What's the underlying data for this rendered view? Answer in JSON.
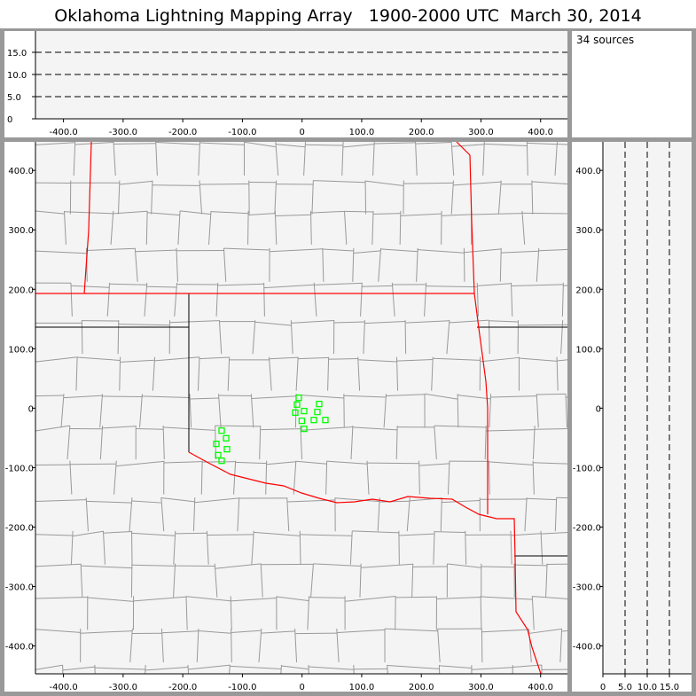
{
  "title": "Oklahoma Lightning Mapping Array   1900-2000 UTC  March 30, 2014",
  "source_count": "34 sources",
  "colors": {
    "border": "#999999",
    "plot_bg": "#f4f4f4",
    "state_line": "#ff0000",
    "county_line": "#999999",
    "source_marker": "#00ff00"
  },
  "chart_data": [
    {
      "type": "line",
      "panel": "altitude-vs-east-west",
      "xlim": [
        -447,
        445
      ],
      "ylim": [
        0,
        19.8
      ],
      "x_ticks": [
        "-400.0",
        "-300.0",
        "-200.0",
        "-100.0",
        "0",
        "100.0",
        "200.0",
        "300.0",
        "400.0"
      ],
      "x_tick_values": [
        -400,
        -300,
        -200,
        -100,
        0,
        100,
        200,
        300,
        400
      ],
      "y_ticks": [
        "0",
        "5.0",
        "10.0",
        "15.0"
      ],
      "y_tick_values": [
        0,
        5,
        10,
        15
      ],
      "reference_lines": [
        5,
        10,
        15
      ],
      "reference_line_style": "dashed"
    },
    {
      "type": "scatter",
      "panel": "plan-view-map",
      "xlim": [
        -447,
        445
      ],
      "ylim": [
        -447,
        448
      ],
      "x_ticks": [
        "-400.0",
        "-300.0",
        "-200.0",
        "-100.0",
        "0",
        "100.0",
        "200.0",
        "300.0",
        "400.0"
      ],
      "x_tick_values": [
        -400,
        -300,
        -200,
        -100,
        0,
        100,
        200,
        300,
        400
      ],
      "y_ticks": [
        "400.0",
        "300.0",
        "200.0",
        "100.0",
        "0",
        "-100.0",
        "-200.0",
        "-300.0",
        "-400.0"
      ],
      "y_tick_values": [
        400,
        300,
        200,
        100,
        0,
        -100,
        -200,
        -300,
        -400
      ],
      "marker": "hollow-square",
      "points": [
        [
          -5.5,
          17.5
        ],
        [
          -8.5,
          6
        ],
        [
          28.7,
          7
        ],
        [
          -11.4,
          -7.5
        ],
        [
          3.4,
          -4.9
        ],
        [
          25.7,
          -6.4
        ],
        [
          -0.4,
          -21.3
        ],
        [
          19.8,
          -19.9
        ],
        [
          39.1,
          -19.9
        ],
        [
          3.4,
          -34.8
        ],
        [
          -134.8,
          -37.8
        ],
        [
          -127.3,
          -50.7
        ],
        [
          -143.7,
          -60.1
        ],
        [
          -125.9,
          -69.1
        ],
        [
          -140.7,
          -79.1
        ],
        [
          -134.8,
          -88.5
        ]
      ]
    },
    {
      "type": "line",
      "panel": "north-south-vs-altitude",
      "xlim": [
        0,
        20
      ],
      "ylim": [
        -447,
        448
      ],
      "x_ticks": [
        "0",
        "5.0",
        "10.0",
        "15.0"
      ],
      "x_tick_values": [
        0,
        5,
        10,
        15
      ],
      "y_ticks": [
        "400.0",
        "300.0",
        "200.0",
        "100.0",
        "0",
        "-100.0",
        "-200.0",
        "-300.0",
        "-400.0"
      ],
      "y_tick_values": [
        400,
        300,
        200,
        100,
        0,
        -100,
        -200,
        -300,
        -400
      ],
      "reference_lines": [
        5,
        10,
        15
      ],
      "reference_line_style": "dashed"
    }
  ]
}
